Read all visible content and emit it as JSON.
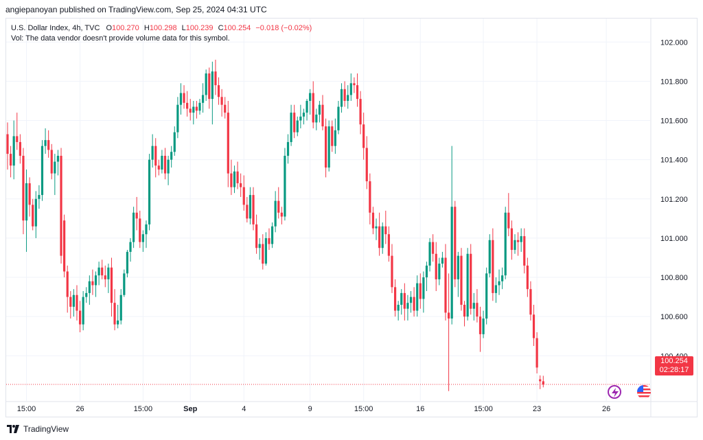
{
  "header": {
    "published_by": "angiepanoyan published on TradingView.com, Sep 25, 2024 04:31 UTC"
  },
  "legend": {
    "symbol": "U.S. Dollar Index, 4h, TVC",
    "open_label": "O",
    "open": "100.270",
    "high_label": "H",
    "high": "100.298",
    "low_label": "L",
    "low": "100.239",
    "close_label": "C",
    "close": "100.254",
    "change": "−0.018 (−0.02%)",
    "volume_note": "Vol: The data vendor doesn't provide volume data for this symbol."
  },
  "last_price": {
    "value": "100.254",
    "countdown": "02:28:17",
    "color": "#f23645"
  },
  "footer": {
    "brand": "TradingView"
  },
  "icons": [
    "tradingview-logo-icon",
    "flash-icon",
    "us-flag-icon"
  ],
  "colors": {
    "up": "#089981",
    "down": "#f23645",
    "grid": "#f0f3fa",
    "axis_text": "#131722"
  },
  "chart_data": {
    "type": "candlestick",
    "title": "U.S. Dollar Index, 4h, TVC",
    "ylim": [
      100.17,
      102.12
    ],
    "y_ticks": [
      {
        "value": 102.0,
        "label": "102.000"
      },
      {
        "value": 101.8,
        "label": "101.800"
      },
      {
        "value": 101.6,
        "label": "101.600"
      },
      {
        "value": 101.4,
        "label": "101.400"
      },
      {
        "value": 101.2,
        "label": "101.200"
      },
      {
        "value": 101.0,
        "label": "101.000"
      },
      {
        "value": 100.8,
        "label": "100.800"
      },
      {
        "value": 100.6,
        "label": "100.600"
      },
      {
        "value": 100.4,
        "label": "100.400"
      }
    ],
    "x_ticks": [
      {
        "index": 6,
        "label": "15:00",
        "bold": false
      },
      {
        "index": 23,
        "label": "26",
        "bold": false
      },
      {
        "index": 43,
        "label": "15:00",
        "bold": false
      },
      {
        "index": 58,
        "label": "Sep",
        "bold": true
      },
      {
        "index": 75,
        "label": "4",
        "bold": false
      },
      {
        "index": 96,
        "label": "9",
        "bold": false
      },
      {
        "index": 113,
        "label": "15:00",
        "bold": false
      },
      {
        "index": 131,
        "label": "16",
        "bold": false
      },
      {
        "index": 151,
        "label": "15:00",
        "bold": false
      },
      {
        "index": 168,
        "label": "23",
        "bold": false
      },
      {
        "index": 190,
        "label": "26",
        "bold": false
      }
    ],
    "grid": true,
    "last_close": 100.254,
    "candles": [
      [
        101.53,
        101.59,
        101.35,
        101.43
      ],
      [
        101.43,
        101.47,
        101.31,
        101.37
      ],
      [
        101.37,
        101.6,
        101.3,
        101.52
      ],
      [
        101.52,
        101.64,
        101.45,
        101.49
      ],
      [
        101.49,
        101.53,
        101.38,
        101.42
      ],
      [
        101.42,
        101.46,
        101.02,
        101.09
      ],
      [
        101.09,
        101.35,
        100.93,
        101.28
      ],
      [
        101.28,
        101.31,
        101.11,
        101.17
      ],
      [
        101.17,
        101.2,
        101.04,
        101.06
      ],
      [
        101.06,
        101.24,
        101.0,
        101.2
      ],
      [
        101.2,
        101.27,
        101.15,
        101.22
      ],
      [
        101.22,
        101.5,
        101.19,
        101.47
      ],
      [
        101.47,
        101.56,
        101.43,
        101.5
      ],
      [
        101.5,
        101.55,
        101.41,
        101.45
      ],
      [
        101.45,
        101.48,
        101.3,
        101.33
      ],
      [
        101.33,
        101.43,
        101.22,
        101.39
      ],
      [
        101.39,
        101.45,
        101.32,
        101.42
      ],
      [
        101.42,
        101.46,
        100.87,
        100.91
      ],
      [
        101.09,
        101.12,
        100.8,
        100.83
      ],
      [
        100.83,
        100.86,
        100.62,
        100.7
      ],
      [
        100.7,
        100.73,
        100.59,
        100.65
      ],
      [
        100.65,
        100.74,
        100.6,
        100.71
      ],
      [
        100.71,
        100.76,
        100.58,
        100.63
      ],
      [
        100.63,
        100.68,
        100.52,
        100.56
      ],
      [
        100.56,
        100.73,
        100.53,
        100.7
      ],
      [
        100.7,
        100.75,
        100.67,
        100.72
      ],
      [
        100.72,
        100.81,
        100.66,
        100.78
      ],
      [
        100.78,
        100.84,
        100.71,
        100.76
      ],
      [
        100.76,
        100.83,
        100.7,
        100.81
      ],
      [
        100.81,
        100.88,
        100.76,
        100.85
      ],
      [
        100.85,
        100.89,
        100.79,
        100.81
      ],
      [
        100.81,
        100.86,
        100.75,
        100.79
      ],
      [
        100.79,
        100.87,
        100.72,
        100.85
      ],
      [
        100.85,
        100.9,
        100.6,
        100.67
      ],
      [
        100.67,
        100.74,
        100.53,
        100.56
      ],
      [
        100.56,
        100.66,
        100.54,
        100.58
      ],
      [
        100.58,
        100.74,
        100.56,
        100.71
      ],
      [
        100.71,
        100.84,
        100.7,
        100.82
      ],
      [
        100.82,
        100.94,
        100.8,
        100.93
      ],
      [
        100.93,
        101.0,
        100.88,
        100.98
      ],
      [
        100.98,
        101.16,
        100.95,
        101.13
      ],
      [
        101.13,
        101.21,
        101.04,
        101.1
      ],
      [
        101.1,
        101.14,
        100.95,
        100.98
      ],
      [
        100.98,
        101.04,
        100.93,
        101.02
      ],
      [
        101.02,
        101.09,
        100.95,
        101.07
      ],
      [
        101.07,
        101.43,
        101.04,
        101.4
      ],
      [
        101.4,
        101.53,
        101.36,
        101.47
      ],
      [
        101.47,
        101.51,
        101.31,
        101.37
      ],
      [
        101.37,
        101.4,
        101.32,
        101.35
      ],
      [
        101.35,
        101.45,
        101.33,
        101.42
      ],
      [
        101.42,
        101.46,
        101.3,
        101.33
      ],
      [
        101.33,
        101.42,
        101.27,
        101.4
      ],
      [
        101.4,
        101.47,
        101.36,
        101.44
      ],
      [
        101.44,
        101.57,
        101.42,
        101.54
      ],
      [
        101.54,
        101.72,
        101.51,
        101.68
      ],
      [
        101.68,
        101.79,
        101.63,
        101.74
      ],
      [
        101.74,
        101.78,
        101.66,
        101.69
      ],
      [
        101.69,
        101.75,
        101.62,
        101.66
      ],
      [
        101.66,
        101.71,
        101.6,
        101.64
      ],
      [
        101.64,
        101.7,
        101.58,
        101.67
      ],
      [
        101.67,
        101.7,
        101.61,
        101.65
      ],
      [
        101.65,
        101.71,
        101.63,
        101.69
      ],
      [
        101.69,
        101.79,
        101.64,
        101.73
      ],
      [
        101.73,
        101.86,
        101.7,
        101.84
      ],
      [
        101.84,
        101.87,
        101.66,
        101.71
      ],
      [
        101.71,
        101.9,
        101.58,
        101.85
      ],
      [
        101.85,
        101.91,
        101.73,
        101.78
      ],
      [
        101.78,
        101.82,
        101.68,
        101.72
      ],
      [
        101.72,
        101.76,
        101.62,
        101.68
      ],
      [
        101.68,
        101.72,
        101.61,
        101.64
      ],
      [
        101.64,
        101.7,
        101.26,
        101.33
      ],
      [
        101.33,
        101.4,
        101.22,
        101.26
      ],
      [
        101.26,
        101.37,
        101.23,
        101.34
      ],
      [
        101.34,
        101.39,
        101.25,
        101.28
      ],
      [
        101.28,
        101.33,
        101.21,
        101.26
      ],
      [
        101.26,
        101.32,
        101.14,
        101.17
      ],
      [
        101.17,
        101.21,
        101.08,
        101.1
      ],
      [
        101.1,
        101.26,
        101.07,
        101.22
      ],
      [
        101.22,
        101.26,
        101.04,
        101.07
      ],
      [
        101.07,
        101.12,
        100.92,
        100.95
      ],
      [
        100.95,
        101.0,
        100.89,
        100.97
      ],
      [
        100.97,
        101.02,
        100.84,
        100.87
      ],
      [
        100.87,
        101.03,
        100.86,
        101.0
      ],
      [
        101.0,
        101.05,
        100.94,
        100.97
      ],
      [
        100.97,
        101.08,
        100.95,
        101.06
      ],
      [
        101.06,
        101.24,
        101.03,
        101.19
      ],
      [
        101.19,
        101.26,
        101.1,
        101.13
      ],
      [
        101.13,
        101.16,
        101.07,
        101.11
      ],
      [
        101.11,
        101.46,
        101.09,
        101.42
      ],
      [
        101.42,
        101.53,
        101.38,
        101.49
      ],
      [
        101.49,
        101.68,
        101.47,
        101.64
      ],
      [
        101.64,
        101.68,
        101.51,
        101.54
      ],
      [
        101.54,
        101.62,
        101.52,
        101.6
      ],
      [
        101.6,
        101.68,
        101.56,
        101.62
      ],
      [
        101.62,
        101.66,
        101.58,
        101.64
      ],
      [
        101.64,
        101.71,
        101.6,
        101.7
      ],
      [
        101.7,
        101.76,
        101.63,
        101.74
      ],
      [
        101.74,
        101.8,
        101.56,
        101.59
      ],
      [
        101.59,
        101.66,
        101.55,
        101.63
      ],
      [
        101.63,
        101.7,
        101.59,
        101.68
      ],
      [
        101.68,
        101.73,
        101.55,
        101.57
      ],
      [
        101.57,
        101.61,
        101.31,
        101.36
      ],
      [
        101.36,
        101.6,
        101.34,
        101.57
      ],
      [
        101.57,
        101.6,
        101.44,
        101.47
      ],
      [
        101.47,
        101.61,
        101.43,
        101.55
      ],
      [
        101.55,
        101.7,
        101.53,
        101.67
      ],
      [
        101.67,
        101.79,
        101.64,
        101.76
      ],
      [
        101.76,
        101.8,
        101.67,
        101.7
      ],
      [
        101.7,
        101.78,
        101.66,
        101.73
      ],
      [
        101.73,
        101.84,
        101.7,
        101.79
      ],
      [
        101.79,
        101.82,
        101.74,
        101.78
      ],
      [
        101.78,
        101.84,
        101.67,
        101.71
      ],
      [
        101.71,
        101.75,
        101.53,
        101.58
      ],
      [
        101.58,
        101.64,
        101.4,
        101.46
      ],
      [
        101.46,
        101.52,
        101.25,
        101.29
      ],
      [
        101.29,
        101.33,
        101.07,
        101.13
      ],
      [
        101.13,
        101.16,
        101.02,
        101.05
      ],
      [
        101.05,
        101.1,
        100.99,
        101.06
      ],
      [
        101.06,
        101.13,
        100.91,
        100.95
      ],
      [
        100.95,
        101.08,
        100.92,
        101.06
      ],
      [
        101.06,
        101.14,
        100.97,
        101.02
      ],
      [
        101.02,
        101.06,
        100.88,
        100.91
      ],
      [
        100.91,
        100.97,
        100.72,
        100.75
      ],
      [
        100.75,
        100.79,
        100.6,
        100.63
      ],
      [
        100.63,
        100.68,
        100.58,
        100.66
      ],
      [
        100.66,
        100.74,
        100.61,
        100.72
      ],
      [
        100.72,
        100.77,
        100.58,
        100.64
      ],
      [
        100.64,
        100.71,
        100.58,
        100.67
      ],
      [
        100.67,
        100.73,
        100.62,
        100.7
      ],
      [
        100.7,
        100.75,
        100.6,
        100.63
      ],
      [
        100.63,
        100.81,
        100.6,
        100.77
      ],
      [
        100.77,
        100.82,
        100.64,
        100.69
      ],
      [
        100.69,
        100.83,
        100.62,
        100.8
      ],
      [
        100.8,
        100.88,
        100.73,
        100.86
      ],
      [
        100.86,
        101.0,
        100.83,
        100.98
      ],
      [
        100.98,
        101.02,
        100.88,
        100.92
      ],
      [
        100.92,
        100.98,
        100.73,
        100.79
      ],
      [
        100.79,
        100.9,
        100.76,
        100.87
      ],
      [
        100.87,
        100.93,
        100.85,
        100.9
      ],
      [
        100.9,
        100.97,
        100.58,
        100.62
      ],
      [
        100.62,
        100.82,
        100.22,
        100.59
      ],
      [
        100.59,
        101.47,
        100.56,
        101.16
      ],
      [
        101.16,
        101.19,
        100.75,
        100.79
      ],
      [
        100.79,
        100.93,
        100.7,
        100.91
      ],
      [
        100.91,
        100.95,
        100.63,
        100.66
      ],
      [
        100.66,
        100.68,
        100.55,
        100.6
      ],
      [
        100.6,
        100.95,
        100.58,
        100.92
      ],
      [
        100.92,
        100.97,
        100.61,
        100.64
      ],
      [
        100.64,
        100.72,
        100.58,
        100.67
      ],
      [
        100.67,
        100.74,
        100.57,
        100.6
      ],
      [
        100.6,
        100.65,
        100.42,
        100.51
      ],
      [
        100.51,
        100.63,
        100.49,
        100.59
      ],
      [
        100.59,
        100.85,
        100.56,
        100.82
      ],
      [
        100.82,
        101.02,
        100.8,
        100.99
      ],
      [
        100.99,
        101.05,
        100.68,
        100.72
      ],
      [
        100.72,
        100.8,
        100.67,
        100.76
      ],
      [
        100.76,
        100.84,
        100.71,
        100.78
      ],
      [
        100.78,
        100.85,
        100.74,
        100.81
      ],
      [
        100.81,
        101.16,
        100.79,
        101.13
      ],
      [
        101.13,
        101.23,
        101.01,
        101.05
      ],
      [
        101.05,
        101.09,
        100.89,
        100.94
      ],
      [
        100.94,
        101.02,
        100.92,
        100.99
      ],
      [
        100.99,
        101.03,
        100.91,
        100.98
      ],
      [
        100.98,
        101.05,
        100.93,
        101.01
      ],
      [
        101.01,
        101.05,
        100.82,
        100.86
      ],
      [
        100.86,
        100.9,
        100.7,
        100.74
      ],
      [
        100.74,
        100.78,
        100.58,
        100.61
      ],
      [
        100.61,
        100.66,
        100.45,
        100.49
      ],
      [
        100.49,
        100.52,
        100.31,
        100.34
      ],
      [
        100.28,
        100.3,
        100.23,
        100.27
      ],
      [
        100.27,
        100.298,
        100.239,
        100.254
      ]
    ]
  }
}
